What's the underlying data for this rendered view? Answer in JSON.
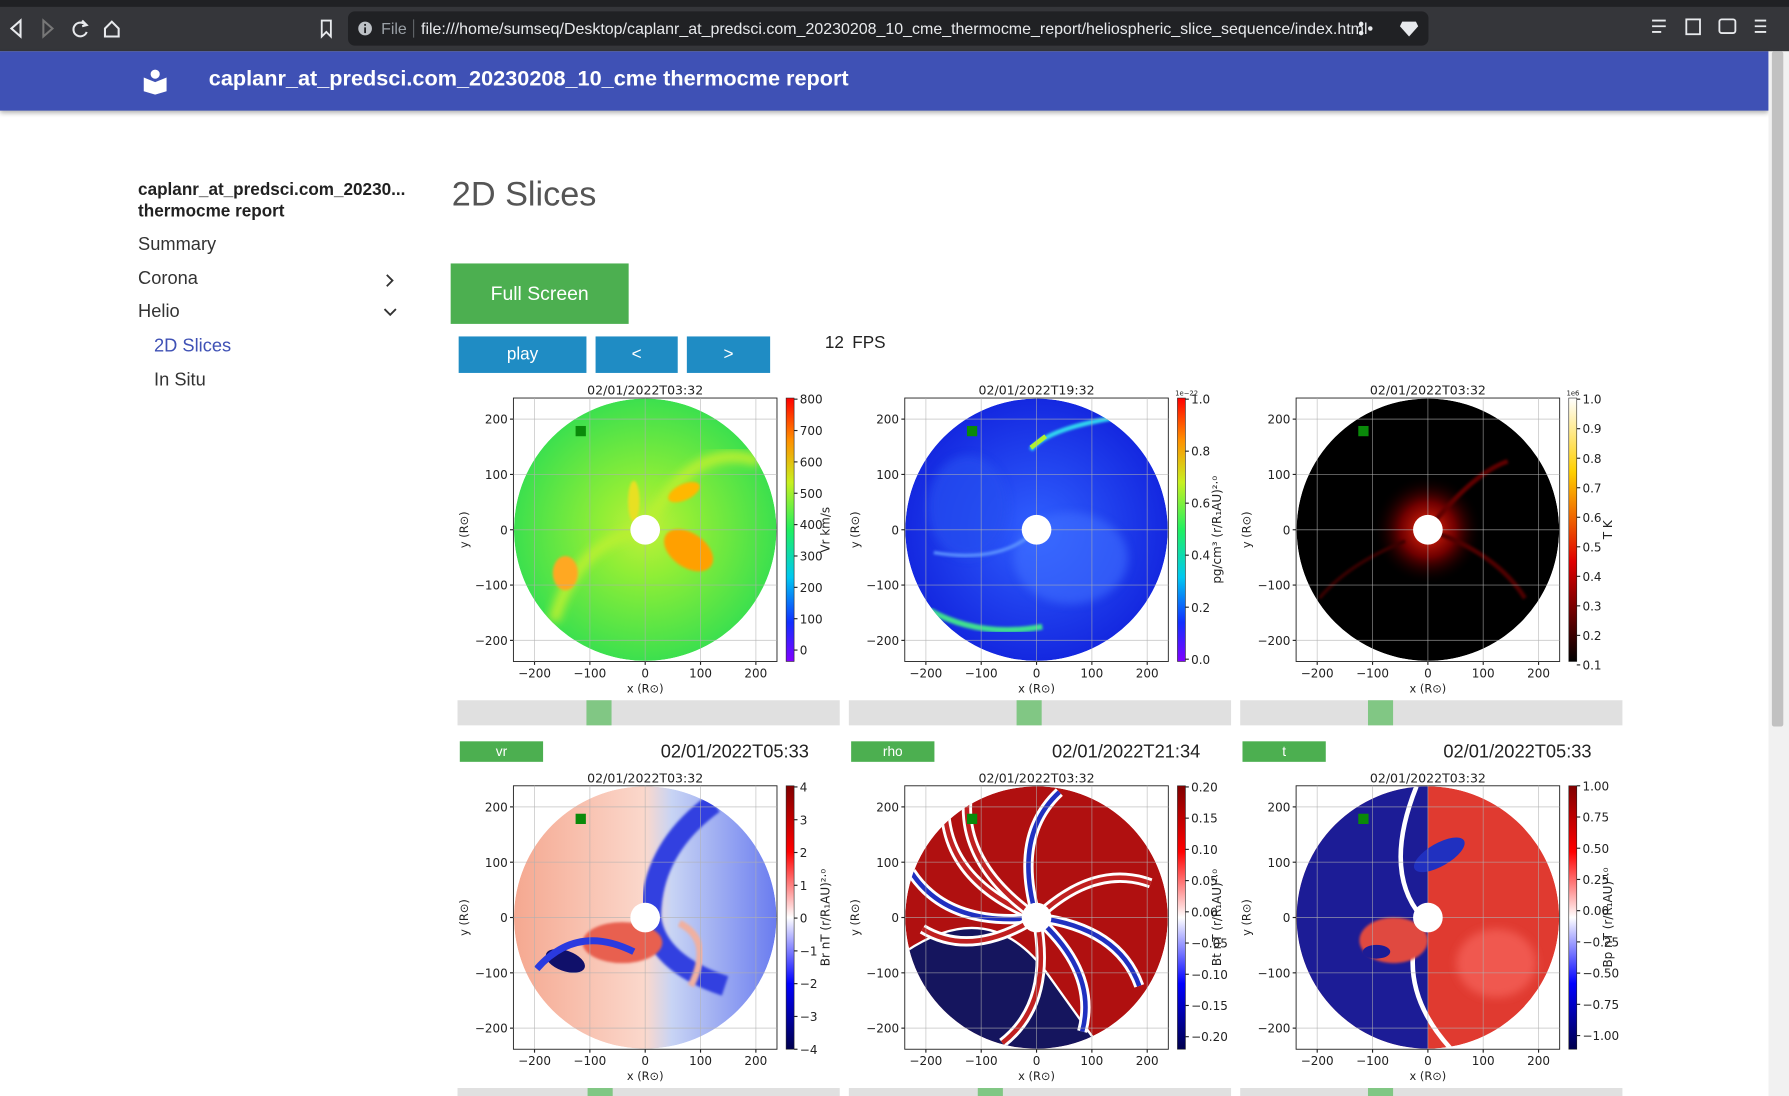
{
  "browser": {
    "scheme": "File",
    "url": "file:///home/sumseq/Desktop/caplanr_at_predsci.com_20230208_10_cme_thermocme_report/heliospheric_slice_sequence/index.html"
  },
  "header": {
    "title": "caplanr_at_predsci.com_20230208_10_cme thermocme report"
  },
  "sidebar": {
    "title_line1": "caplanr_at_predsci.com_20230...",
    "title_line2": "thermocme report",
    "items": [
      {
        "label": "Summary"
      },
      {
        "label": "Corona"
      },
      {
        "label": "Helio",
        "children": [
          "2D Slices",
          "In Situ"
        ]
      }
    ]
  },
  "content": {
    "heading": "2D Slices",
    "full_screen": "Full Screen",
    "controls": {
      "play": "play",
      "prev": "<",
      "next": ">",
      "fps": "12",
      "fps_unit": "FPS"
    },
    "axis": {
      "xticks": [
        "−200",
        "−100",
        "0",
        "100",
        "200"
      ],
      "yticks": [
        "200",
        "100",
        "0",
        "−100",
        "−200"
      ],
      "xlabel": "x (R⊙)",
      "ylabel": "y (R⊙)"
    },
    "panels": [
      {
        "title": "02/01/2022T03:32",
        "colorbar_label": "Vr km/s",
        "colorbar_ticks": [
          "800",
          "700",
          "600",
          "500",
          "400",
          "300",
          "200",
          "100",
          "0"
        ]
      },
      {
        "title": "02/01/2022T19:32",
        "colorbar_label": "pg/cm³ (r/R₁AU)²·⁰",
        "offset": "1e−22",
        "colorbar_ticks": [
          "1.0",
          "0.8",
          "0.6",
          "0.4",
          "0.2",
          "0.0"
        ]
      },
      {
        "title": "02/01/2022T03:32",
        "colorbar_label": "T K",
        "offset": "1e6",
        "colorbar_ticks": [
          "1.0",
          "0.9",
          "0.8",
          "0.7",
          "0.6",
          "0.5",
          "0.4",
          "0.3",
          "0.2",
          "0.1"
        ]
      },
      {
        "variable": "vr",
        "time": "02/01/2022T05:33",
        "title": "02/01/2022T03:32",
        "colorbar_label": "Br nT (r/R₁AU)²·⁰",
        "colorbar_ticks": [
          "4",
          "3",
          "2",
          "1",
          "0",
          "−1",
          "−2",
          "−3",
          "−4"
        ]
      },
      {
        "variable": "rho",
        "time": "02/01/2022T21:34",
        "title": "02/01/2022T03:32",
        "colorbar_label": "Bt nT (r/R₁AU)²·⁰",
        "colorbar_ticks": [
          "0.20",
          "0.15",
          "0.10",
          "0.05",
          "0.00",
          "−0.05",
          "−0.10",
          "−0.15",
          "−0.20"
        ]
      },
      {
        "variable": "t",
        "time": "02/01/2022T05:33",
        "title": "02/01/2022T03:32",
        "colorbar_label": "Bp nT (r/R₁AU)²·⁰",
        "colorbar_ticks": [
          "1.00",
          "0.75",
          "0.50",
          "0.25",
          "0.00",
          "−0.25",
          "−0.50",
          "−0.75",
          "−1.00"
        ]
      }
    ]
  }
}
